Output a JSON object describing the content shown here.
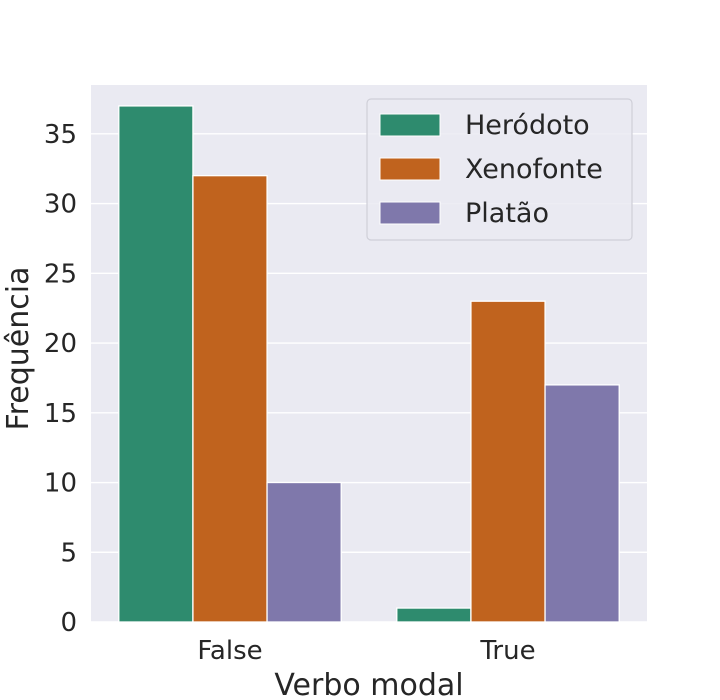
{
  "chart_data": {
    "type": "bar",
    "title": "",
    "xlabel": "Verbo modal",
    "ylabel": "Frequência",
    "categories": [
      "False",
      "True"
    ],
    "series": [
      {
        "name": "Heródoto",
        "color": "#2e8b6e",
        "values": [
          37,
          1
        ]
      },
      {
        "name": "Xenofonte",
        "color": "#c0631e",
        "values": [
          32,
          23
        ]
      },
      {
        "name": "Platão",
        "color": "#7f78ab",
        "values": [
          10,
          17
        ]
      }
    ],
    "ylim": [
      0,
      38.5
    ],
    "yticks": [
      0,
      5,
      10,
      15,
      20,
      25,
      30,
      35
    ],
    "grid": true,
    "legend_position": "top-right"
  },
  "colors": {
    "plot_background": "#eaeaf2",
    "grid": "#ffffff",
    "text": "#262626"
  }
}
